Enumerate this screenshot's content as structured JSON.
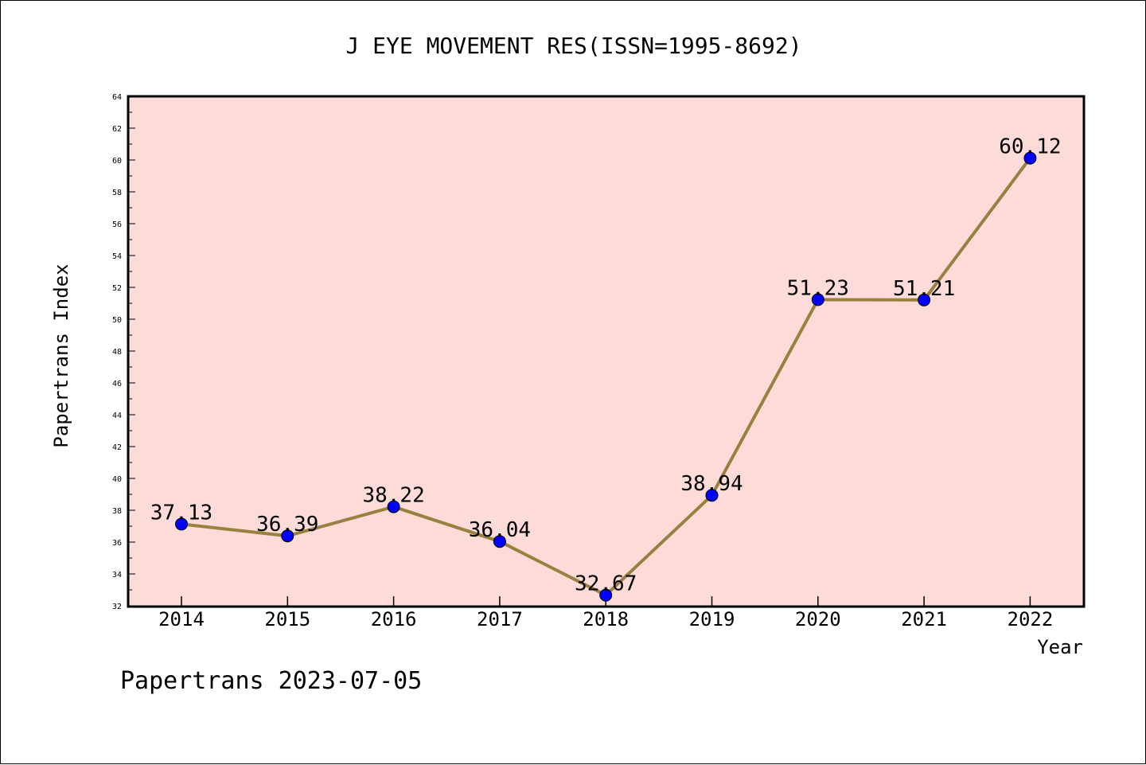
{
  "chart_data": {
    "type": "line",
    "title": "J EYE MOVEMENT RES(ISSN=1995-8692)",
    "xlabel": "Year",
    "ylabel": "Papertrans Index",
    "categories": [
      "2014",
      "2015",
      "2016",
      "2017",
      "2018",
      "2019",
      "2020",
      "2021",
      "2022"
    ],
    "series": [
      {
        "values": [
          37.13,
          36.39,
          38.22,
          36.04,
          32.67,
          38.94,
          51.23,
          51.21,
          60.12
        ],
        "labels": [
          "37.13",
          "36.39",
          "38.22",
          "36.04",
          "32.67",
          "38.94",
          "51.23",
          "51.21",
          "60.12"
        ]
      }
    ],
    "ylim": [
      32,
      64
    ],
    "yticks": [
      "32",
      "34",
      "36",
      "38",
      "40",
      "42",
      "44",
      "46",
      "48",
      "50",
      "52",
      "54",
      "56",
      "58",
      "60",
      "62",
      "64"
    ],
    "grid": false,
    "colors": {
      "plot_background": "#fddbd8",
      "line": "#9a8040",
      "marker": "#0000ff"
    }
  },
  "footer": "Papertrans 2023-07-05"
}
